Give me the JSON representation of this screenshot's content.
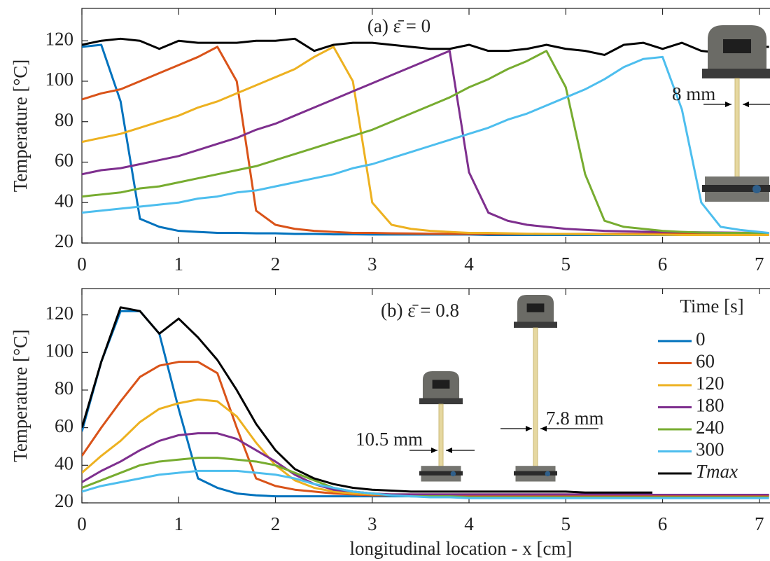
{
  "chart_data": [
    {
      "type": "line",
      "title": "(a) ε̄ = 0",
      "ylabel": "Temperature [°C]",
      "x": [
        0,
        0.2,
        0.4,
        0.6,
        0.8,
        1,
        1.2,
        1.4,
        1.6,
        1.8,
        2,
        2.2,
        2.4,
        2.6,
        2.8,
        3,
        3.2,
        3.4,
        3.6,
        3.8,
        4,
        4.2,
        4.4,
        4.6,
        4.8,
        5,
        5.2,
        5.4,
        5.6,
        5.8,
        6,
        6.2,
        6.4,
        6.6,
        6.8,
        7,
        7.1
      ],
      "xlim": [
        0,
        7.11
      ],
      "ylim": [
        20,
        136
      ],
      "xticks": [
        0,
        1,
        2,
        3,
        4,
        5,
        6,
        7
      ],
      "yticks": [
        20,
        40,
        60,
        80,
        100,
        120
      ],
      "annotations": [
        "8 mm"
      ],
      "series": [
        {
          "color": "#0072BD",
          "values": [
            117,
            118,
            90,
            32,
            28,
            26,
            25.5,
            25,
            25,
            24.8,
            24.8,
            24.5,
            24.5,
            24.3,
            24.3,
            24.2,
            24.2,
            24.2,
            24.2,
            24.2,
            24.2,
            24,
            24,
            24,
            24,
            24,
            24,
            24,
            24,
            24,
            24,
            24,
            24,
            24,
            24,
            24,
            24
          ]
        },
        {
          "color": "#D95319",
          "values": [
            91,
            94,
            96,
            100,
            104,
            108,
            112,
            117,
            100,
            36,
            29,
            27,
            26,
            25.5,
            25,
            25,
            24.8,
            24.7,
            24.6,
            24.5,
            24.5,
            24.5,
            24.5,
            24.5,
            24.5,
            24.5,
            24.5,
            24.5,
            24.5,
            24.5,
            24.5,
            24.5,
            24.5,
            24.5,
            24.5,
            24.5,
            24.5
          ]
        },
        {
          "color": "#EDB120",
          "values": [
            70,
            72,
            74,
            77,
            80,
            83,
            87,
            90,
            94,
            98,
            102,
            106,
            112,
            117,
            100,
            40,
            29,
            27,
            26,
            25.5,
            25,
            25,
            24.8,
            24.6,
            24.5,
            24.5,
            24.4,
            24.3,
            24.2,
            24.2,
            24.1,
            24,
            24,
            24,
            24,
            24,
            24
          ]
        },
        {
          "color": "#7E2F8E",
          "values": [
            54,
            56,
            57,
            59,
            61,
            63,
            66,
            69,
            72,
            76,
            79,
            83,
            87,
            91,
            95,
            99,
            103,
            107,
            111,
            115,
            55,
            35,
            31,
            29,
            28,
            27,
            26.5,
            26,
            25.8,
            25.6,
            25.5,
            25.4,
            25.3,
            25.2,
            25.1,
            25,
            25
          ]
        },
        {
          "color": "#77AC30",
          "values": [
            43,
            44,
            45,
            47,
            48,
            50,
            52,
            54,
            56,
            58,
            61,
            64,
            67,
            70,
            73,
            76,
            80,
            84,
            88,
            92,
            97,
            101,
            106,
            110,
            115,
            97,
            54,
            31,
            28,
            27,
            26,
            25.5,
            25.2,
            25,
            25,
            25,
            25
          ]
        },
        {
          "color": "#4DBEEE",
          "values": [
            35,
            36,
            37,
            38,
            39,
            40,
            42,
            43,
            45,
            46,
            48,
            50,
            52,
            54,
            57,
            59,
            62,
            65,
            68,
            71,
            74,
            77,
            81,
            84,
            88,
            92,
            96,
            101,
            107,
            111,
            112,
            86,
            40,
            28,
            26.5,
            25.5,
            25
          ]
        },
        {
          "color": "#000000",
          "values": [
            118,
            120,
            121,
            120,
            116,
            120,
            119,
            119,
            119,
            120,
            120,
            121,
            115,
            118,
            119,
            119,
            118,
            117,
            116,
            116,
            118,
            115,
            115,
            116,
            118,
            116,
            115,
            113,
            118,
            119,
            116,
            119,
            115,
            114,
            114,
            117,
            117
          ]
        }
      ]
    },
    {
      "type": "line",
      "title": "(b) ε̄ = 0.8",
      "ylabel": "Temperature [°C]",
      "xlabel": "longitudinal location - x [cm]",
      "x": [
        0,
        0.2,
        0.4,
        0.6,
        0.8,
        1,
        1.2,
        1.4,
        1.6,
        1.8,
        2,
        2.2,
        2.4,
        2.6,
        2.8,
        3,
        3.2,
        3.4,
        3.6,
        3.8,
        4,
        4.2,
        4.4,
        4.6,
        4.8,
        5,
        5.2,
        5.4,
        5.6,
        5.8,
        6,
        6.2,
        6.4,
        6.6,
        6.8,
        7,
        7.1
      ],
      "xlim": [
        0,
        7.11
      ],
      "ylim": [
        20,
        134
      ],
      "xticks": [
        0,
        1,
        2,
        3,
        4,
        5,
        6,
        7
      ],
      "yticks": [
        20,
        40,
        60,
        80,
        100,
        120
      ],
      "legend": "upper right",
      "legend_title": "Time [s]",
      "annotations": [
        "10.5 mm",
        "7.8 mm"
      ],
      "series": [
        {
          "name": "0",
          "color": "#0072BD",
          "values": [
            58,
            95,
            122,
            122,
            110,
            70,
            33,
            28,
            25,
            24,
            23.5,
            23.5,
            23.5,
            23.5,
            23.5,
            23.5,
            23.5,
            23.5,
            23.5,
            23.5,
            23.5,
            23.5,
            23.5,
            23.5,
            23.5,
            23.5,
            23.5,
            23.5,
            23.5,
            23.5,
            23.5,
            23.5,
            23.5,
            23.5,
            23.5,
            23.5,
            23.5
          ]
        },
        {
          "name": "60",
          "color": "#D95319",
          "values": [
            45,
            60,
            74,
            87,
            93,
            95,
            95,
            89,
            60,
            33,
            29,
            27,
            26,
            25,
            24.5,
            24,
            24,
            24,
            24,
            24,
            24,
            24,
            24,
            24,
            24,
            24,
            24,
            24,
            24,
            24,
            24,
            24,
            24,
            24,
            24,
            24,
            24
          ]
        },
        {
          "name": "120",
          "color": "#EDB120",
          "values": [
            36,
            45,
            53,
            63,
            70,
            73,
            75,
            74,
            66,
            52,
            40,
            32,
            28,
            26,
            25,
            24.5,
            24.5,
            24.5,
            24.5,
            24.5,
            24.5,
            24.5,
            24.5,
            24.5,
            24.5,
            24.5,
            24.5,
            24.5,
            24.5,
            24.5,
            24.5,
            24.5,
            24.5,
            24.5,
            24.5,
            24.5,
            24.5
          ]
        },
        {
          "name": "180",
          "color": "#7E2F8E",
          "values": [
            31,
            37,
            42,
            48,
            53,
            56,
            57,
            57,
            54,
            48,
            42,
            35,
            30,
            27,
            26,
            25,
            24.5,
            24.5,
            24.5,
            24.5,
            24.5,
            24.5,
            24.5,
            24.5,
            24.5,
            24.5,
            24.5,
            24.5,
            24.5,
            24.5,
            24.5,
            24.5,
            24.5,
            24.5,
            24.5,
            24.5,
            24.5
          ]
        },
        {
          "name": "240",
          "color": "#77AC30",
          "values": [
            28,
            32,
            36,
            40,
            42,
            43,
            44,
            44,
            43,
            42,
            40,
            36,
            32,
            28,
            26,
            25,
            24,
            23.5,
            23.5,
            23.5,
            23,
            23,
            23,
            23,
            23,
            23,
            23,
            23,
            23,
            23,
            23,
            23,
            23,
            23,
            23,
            23,
            23
          ]
        },
        {
          "name": "300",
          "color": "#4DBEEE",
          "values": [
            26,
            29,
            31,
            33,
            35,
            36,
            37,
            37,
            37,
            36,
            35,
            33,
            30,
            28,
            26,
            25,
            24,
            23.5,
            23,
            23,
            22.5,
            22.5,
            22.5,
            22.5,
            22.5,
            22.5,
            22.5,
            22.5,
            22.5,
            22.5,
            22.5,
            22.5,
            22.5,
            22.5,
            22.5,
            22.5,
            22.5
          ]
        },
        {
          "name": "Tmax",
          "color": "#000000",
          "values": [
            60,
            95,
            124,
            122,
            110,
            118,
            108,
            96,
            80,
            62,
            48,
            38,
            33,
            30,
            28,
            27,
            26.5,
            26,
            26,
            26,
            26,
            26,
            26,
            26,
            26,
            26,
            25.5,
            25.5,
            25.5,
            25.5,
            25.5,
            25.5,
            25.5,
            25.5,
            25.5,
            25.5,
            25.5
          ]
        }
      ]
    }
  ]
}
